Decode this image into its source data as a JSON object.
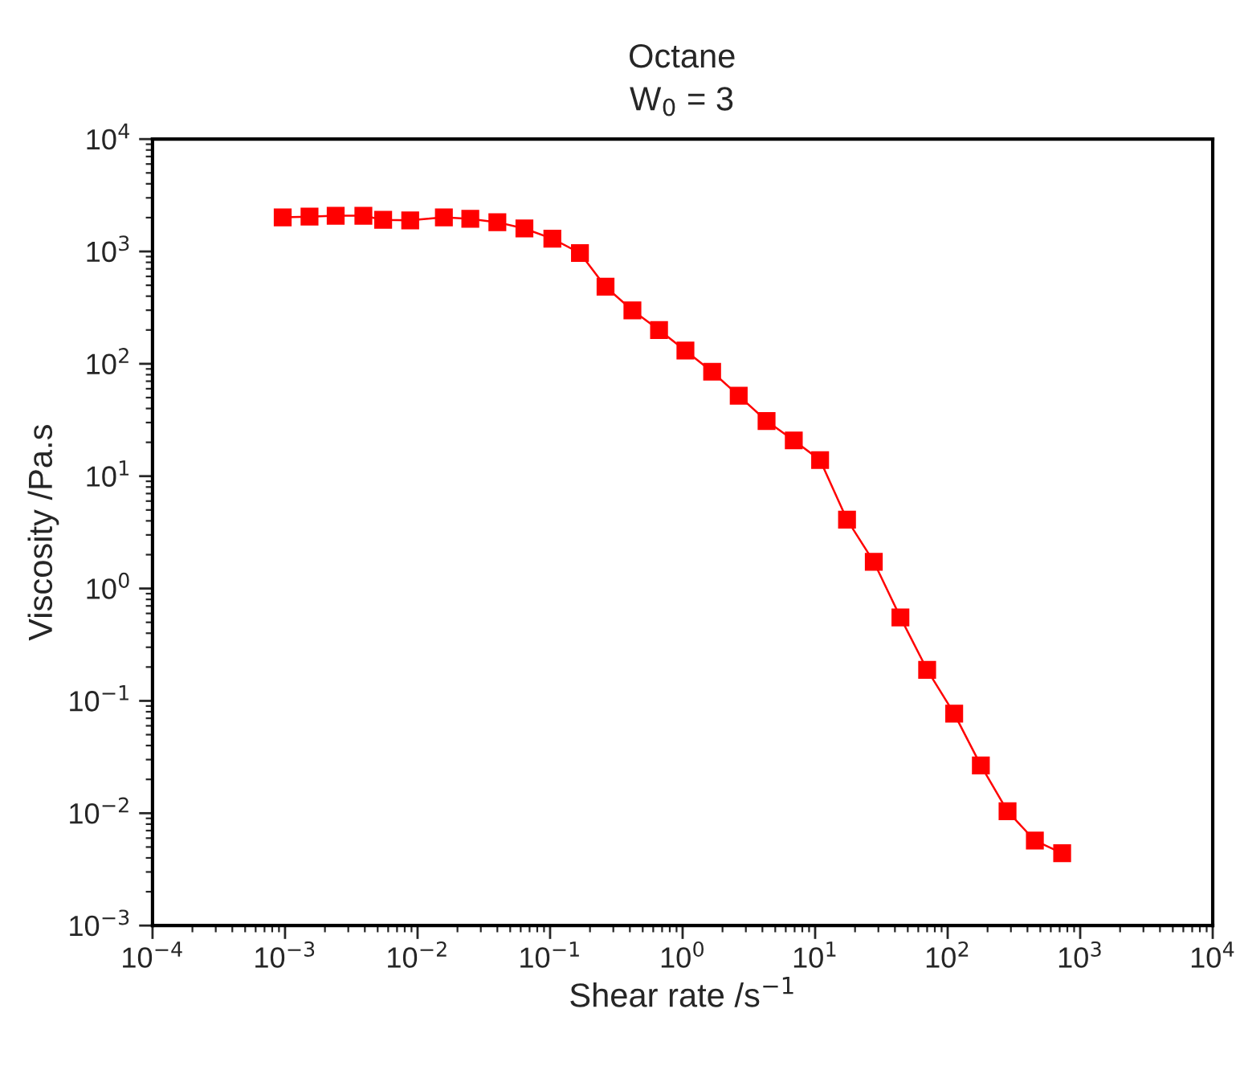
{
  "chart_data": {
    "type": "line",
    "title": "Octane",
    "subtitle": "W$_{0}$ = 3",
    "xlabel": "Shear rate /s$^{−1}$",
    "ylabel": "Viscosity /Pa.s",
    "log": "xy",
    "marker": "square",
    "line_style": "solid",
    "grid": false,
    "legend": false,
    "xlim": [
      0.0001,
      10000
    ],
    "ylim": [
      0.001,
      10000
    ],
    "xticks": [
      {
        "value": 0.0001,
        "label": "10$^{−4}$"
      },
      {
        "value": 0.001,
        "label": "10$^{−3}$"
      },
      {
        "value": 0.01,
        "label": "10$^{−2}$"
      },
      {
        "value": 0.1,
        "label": "10$^{−1}$"
      },
      {
        "value": 1,
        "label": "10$^{0}$"
      },
      {
        "value": 10,
        "label": "10$^{1}$"
      },
      {
        "value": 100,
        "label": "10$^{2}$"
      },
      {
        "value": 1000,
        "label": "10$^{3}$"
      },
      {
        "value": 10000,
        "label": "10$^{4}$"
      }
    ],
    "yticks": [
      {
        "value": 0.001,
        "label": "10$^{−3}$"
      },
      {
        "value": 0.01,
        "label": "10$^{−2}$"
      },
      {
        "value": 0.1,
        "label": "10$^{−1}$"
      },
      {
        "value": 1,
        "label": "10$^{0}$"
      },
      {
        "value": 10,
        "label": "10$^{1}$"
      },
      {
        "value": 100,
        "label": "10$^{2}$"
      },
      {
        "value": 1000,
        "label": "10$^{3}$"
      },
      {
        "value": 10000,
        "label": "10$^{4}$"
      }
    ],
    "x": [
      0.00096,
      0.00153,
      0.00241,
      0.0039,
      0.0055,
      0.0088,
      0.0158,
      0.025,
      0.04,
      0.064,
      0.104,
      0.168,
      0.262,
      0.418,
      0.664,
      1.05,
      1.67,
      2.65,
      4.3,
      6.9,
      10.9,
      17.4,
      27.7,
      44,
      70,
      112,
      178,
      283,
      455,
      731
    ],
    "series": [
      {
        "color": "#ff0000",
        "values": [
          2010,
          2040,
          2080,
          2080,
          1910,
          1890,
          2010,
          1950,
          1820,
          1600,
          1300,
          968,
          485,
          299,
          200,
          131,
          85,
          52,
          31,
          20.8,
          13.9,
          4.1,
          1.73,
          0.553,
          0.189,
          0.077,
          0.0266,
          0.0104,
          0.0057,
          0.0044
        ]
      }
    ]
  }
}
